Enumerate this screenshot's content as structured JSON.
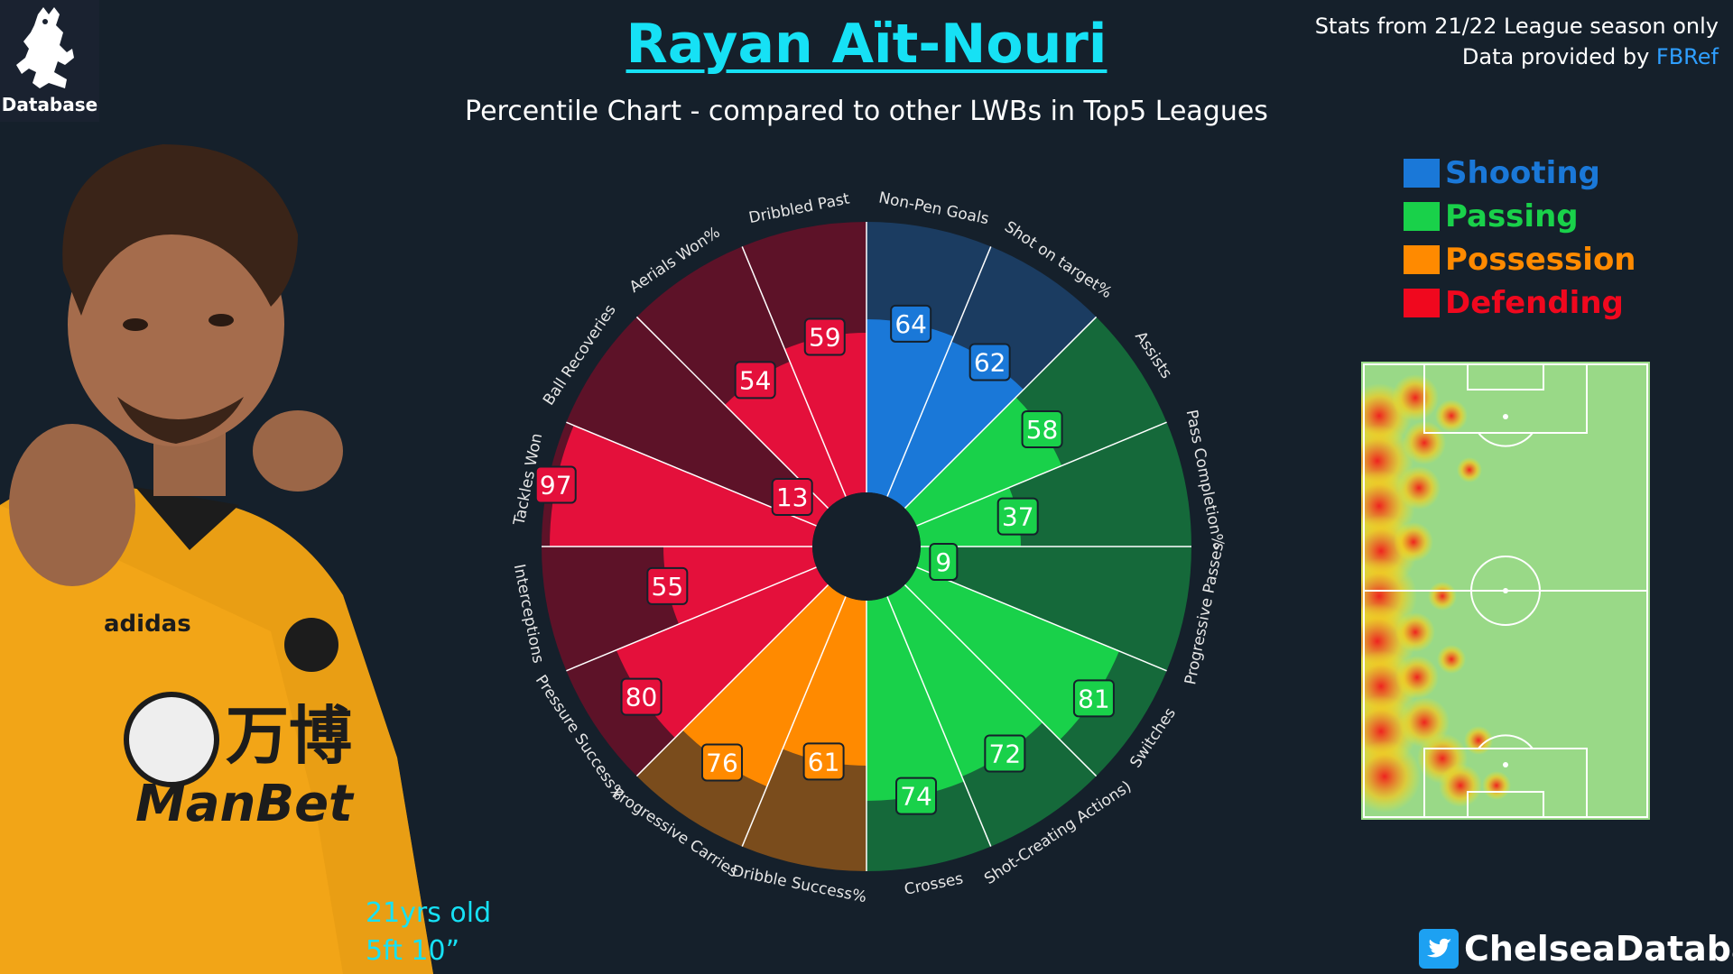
{
  "logo": {
    "text": "Database"
  },
  "header": {
    "title": "Rayan Aït-Nouri",
    "subtitle": "Percentile Chart - compared to other LWBs in Top5 Leagues"
  },
  "source": {
    "line1": "Stats from 21/22 League season only",
    "line2_prefix": "Data provided by ",
    "line2_link": "FBRef"
  },
  "legend": [
    {
      "label": "Shooting",
      "color": "#1a78d8"
    },
    {
      "label": "Passing",
      "color": "#19d14a"
    },
    {
      "label": "Possession",
      "color": "#ff8a00"
    },
    {
      "label": "Defending",
      "color": "#f0081e"
    }
  ],
  "player": {
    "age": "21yrs old",
    "height": "5ft 10”"
  },
  "footer": {
    "handle": "ChelseaDatabase",
    "icon": "twitter-icon"
  },
  "chart_data": {
    "type": "radial-bar",
    "range": [
      0,
      100
    ],
    "groups": [
      {
        "name": "Shooting",
        "color": "#1a78d8",
        "bg": "#1b3c61"
      },
      {
        "name": "Passing",
        "color": "#19d14a",
        "bg": "#15693a"
      },
      {
        "name": "Possession",
        "color": "#ff8a00",
        "bg": "#7a4c1c"
      },
      {
        "name": "Defending",
        "color": "#e4103b",
        "bg": "#5d1228"
      }
    ],
    "metrics": [
      {
        "label": "Non-Pen Goals",
        "value": 64,
        "group": "Shooting"
      },
      {
        "label": "Shot on target%",
        "value": 62,
        "group": "Shooting"
      },
      {
        "label": "Assists",
        "value": 58,
        "group": "Passing"
      },
      {
        "label": "Pass Completion%",
        "value": 37,
        "group": "Passing"
      },
      {
        "label": "Progressive Passes",
        "value": 9,
        "group": "Passing"
      },
      {
        "label": "Switches",
        "value": 81,
        "group": "Passing"
      },
      {
        "label": "Shot-Creating Actions)",
        "value": 72,
        "group": "Passing"
      },
      {
        "label": "Crosses",
        "value": 74,
        "group": "Passing"
      },
      {
        "label": "Dribble Success%",
        "value": 61,
        "group": "Possession"
      },
      {
        "label": "Progressive Carries",
        "value": 76,
        "group": "Possession"
      },
      {
        "label": "Pressure Success%",
        "value": 80,
        "group": "Defending"
      },
      {
        "label": "Interceptions",
        "value": 55,
        "group": "Defending"
      },
      {
        "label": "Tackles Won",
        "value": 97,
        "group": "Defending"
      },
      {
        "label": "Ball Recoveries",
        "value": 13,
        "group": "Defending"
      },
      {
        "label": "Aerials Won%",
        "value": 54,
        "group": "Defending"
      },
      {
        "label": "Dribbled Past",
        "value": 59,
        "group": "Defending"
      }
    ]
  }
}
